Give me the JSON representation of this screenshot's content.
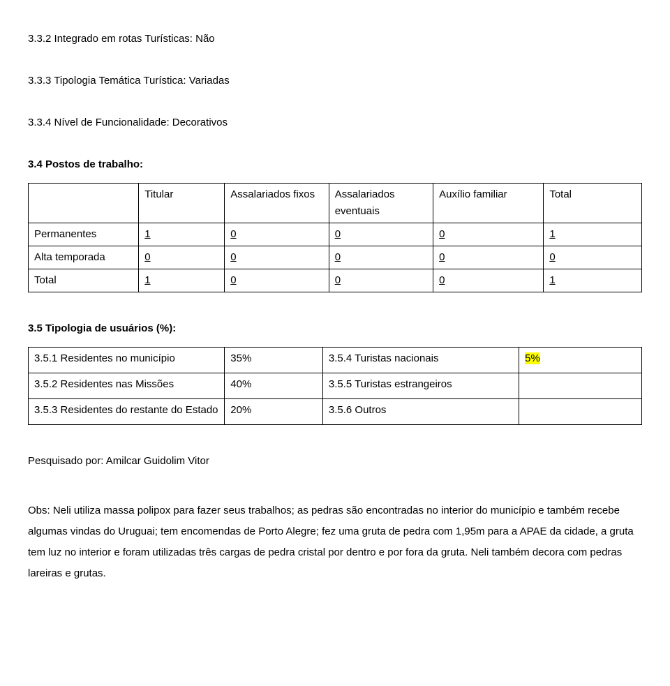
{
  "lines": {
    "l332": "3.3.2 Integrado em rotas Turísticas: Não",
    "l333": "3.3.3 Tipologia Temática Turística: Variadas",
    "l334": "3.3.4 Nível de Funcionalidade: Decorativos",
    "l34": "3.4 Postos de trabalho:",
    "l35": "3.5 Tipologia de usuários (%):",
    "researcher": "Pesquisado por: Amilcar Guidolim Vitor",
    "obs": "Obs: Neli utiliza massa polipox para fazer seus trabalhos; as pedras são encontradas no interior do município e também recebe algumas vindas do Uruguai; tem encomendas de Porto Alegre; fez uma gruta de pedra com 1,95m para a APAE da cidade, a gruta tem luz no interior e foram utilizadas três cargas de pedra cristal por dentro e por fora da gruta. Neli também decora com pedras lareiras e grutas."
  },
  "table1": {
    "headers": [
      "",
      "Titular",
      "Assalariados fixos",
      "Assalariados eventuais",
      "Auxílio familiar",
      "Total"
    ],
    "rows": [
      {
        "label": "Permanentes",
        "v": [
          "1",
          "0",
          "0",
          "0",
          "1"
        ]
      },
      {
        "label": "Alta temporada",
        "v": [
          "0",
          "0",
          "0",
          "0",
          "0"
        ]
      },
      {
        "label": "Total",
        "v": [
          "1",
          "0",
          "0",
          "0",
          "1"
        ]
      }
    ],
    "col_widths": [
      "18%",
      "14%",
      "17%",
      "17%",
      "18%",
      "16%"
    ]
  },
  "table2": {
    "rows": [
      {
        "c1": "3.5.1 Residentes no município",
        "c2": "35%",
        "c3": "3.5.4 Turistas nacionais",
        "c4": "5%",
        "c4_highlight": true
      },
      {
        "c1": "3.5.2 Residentes nas Missões",
        "c2": "40%",
        "c3": "3.5.5 Turistas estrangeiros",
        "c4": "",
        "c4_highlight": false
      },
      {
        "c1": "3.5.3 Residentes do restante do Estado",
        "c2": "20%",
        "c3": "3.5.6 Outros",
        "c4": "",
        "c4_highlight": false
      }
    ],
    "col_widths": [
      "32%",
      "16%",
      "32%",
      "20%"
    ]
  }
}
